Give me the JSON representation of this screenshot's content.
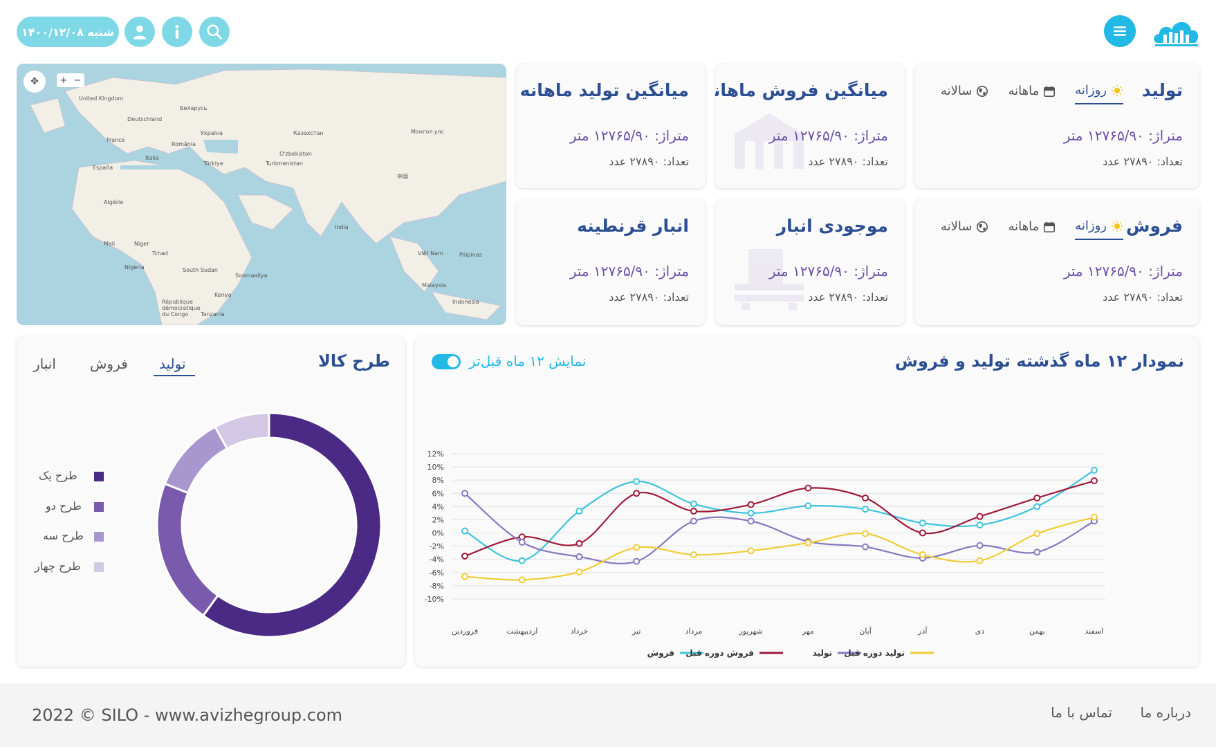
{
  "topbar": {
    "date_label": "شنبه ۱۴۰۰/۱۲/۰۸",
    "icons": [
      "user-icon",
      "info-icon",
      "search-icon",
      "menu-icon",
      "silo-cloud-logo"
    ],
    "accent": "#7fd8e6",
    "primary": "#22b9e4"
  },
  "map": {
    "labels": [
      "United Kingdom",
      "Deutschland",
      "France",
      "España",
      "Italia",
      "Беларусь",
      "Україна",
      "România",
      "Türkiye",
      "Казахстан",
      "O'zbekiston",
      "Turkmenistan",
      "Монгол улс",
      "中国",
      "Algérie",
      "Mali",
      "Niger",
      "Tchad",
      "Nigeria",
      "South Sudan",
      "Kenya",
      "Tanzania",
      "India",
      "Việt Nam",
      "Pilipinas",
      "Malaysia",
      "Indonesia",
      "République démocratique du Congo",
      "Soomaaliya"
    ]
  },
  "cards": {
    "production": {
      "title": "تولید",
      "tabs": [
        "روزانه",
        "ماهانه",
        "سالانه"
      ],
      "active_tab": "روزانه",
      "line1": "متراژ: ۱۲۷۶۵/۹۰ متر",
      "line2": "تعداد: ۲۷۸۹۰ عدد"
    },
    "avg_sales": {
      "title": "میانگین فروش ماهانه",
      "line1": "متراژ: ۱۲۷۶۵/۹۰ متر",
      "line2": "تعداد: ۲۷۸۹۰ عدد"
    },
    "avg_production": {
      "title": "میانگین تولید ماهانه",
      "line1": "متراژ: ۱۲۷۶۵/۹۰ متر",
      "line2": "تعداد: ۲۷۸۹۰ عدد"
    },
    "sales": {
      "title": "فروش",
      "tabs": [
        "روزانه",
        "ماهانه",
        "سالانه"
      ],
      "active_tab": "روزانه",
      "line1": "متراژ: ۱۲۷۶۵/۹۰ متر",
      "line2": "تعداد: ۲۷۸۹۰ عدد"
    },
    "inventory": {
      "title": "موجودی انبار",
      "line1": "متراژ: ۱۲۷۶۵/۹۰ متر",
      "line2": "تعداد: ۲۷۸۹۰ عدد"
    },
    "quarantine": {
      "title": "انبار قرنطینه",
      "line1": "متراژ: ۱۲۷۶۵/۹۰ متر",
      "line2": "تعداد: ۲۷۸۹۰ عدد"
    }
  },
  "design_panel": {
    "title": "طرح کالا",
    "tabs": [
      "تولید",
      "فروش",
      "انبار"
    ],
    "active_tab": "تولید"
  },
  "line_panel": {
    "title": "نمودار ۱۲ ماه گذشته تولید و فروش",
    "toggle_label": "نمایش ۱۲ ماه قبل‌تر",
    "toggle_on": true
  },
  "chart_data": [
    {
      "type": "pie",
      "title": "",
      "categories": [
        "طرح یک",
        "طرح دو",
        "طرح سه",
        "طرح چهار"
      ],
      "values": [
        60,
        21,
        11,
        8
      ],
      "colors": [
        "#4a2a85",
        "#7a5aad",
        "#a896cf",
        "#d3c9e6"
      ],
      "donut": true,
      "legend_position": "left"
    },
    {
      "type": "line",
      "title": "",
      "categories": [
        "فروردین",
        "اردیبهشت",
        "خرداد",
        "تیر",
        "مرداد",
        "شهریور",
        "مهر",
        "آبان",
        "آذر",
        "دی",
        "بهمن",
        "اسفند"
      ],
      "y_tick_labels": [
        "12%",
        "10%",
        "8%",
        "6%",
        "4%",
        "2%",
        "0%",
        "-2%",
        "-4%",
        "-6%",
        "-8%",
        "-10%"
      ],
      "ylim": [
        -10,
        12
      ],
      "y_unit": "%",
      "grid": true,
      "legend_position": "bottom",
      "series": [
        {
          "name": "فروش",
          "color": "#3cc4dc",
          "values": [
            0.3,
            -4.2,
            3.3,
            7.8,
            4.4,
            3.0,
            4.1,
            3.6,
            1.5,
            1.2,
            4.0,
            9.5
          ]
        },
        {
          "name": "فروش دوره قبل",
          "color": "#9e1a3a",
          "values": [
            -3.5,
            -0.6,
            -1.6,
            6.0,
            3.3,
            4.3,
            6.8,
            5.3,
            0.0,
            2.5,
            5.3,
            7.9
          ]
        },
        {
          "name": "تولید",
          "color": "#8877c0",
          "values": [
            6.0,
            -1.4,
            -3.6,
            -4.3,
            1.8,
            1.8,
            -1.3,
            -2.1,
            -3.8,
            -1.9,
            -2.9,
            1.8
          ]
        },
        {
          "name": "تولید دوره قبل",
          "color": "#f0cd34",
          "values": [
            -6.6,
            -7.1,
            -5.9,
            -2.2,
            -3.3,
            -2.7,
            -1.5,
            -0.1,
            -3.3,
            -4.2,
            -0.1,
            2.4
          ]
        }
      ]
    }
  ],
  "footer": {
    "copyright": "2022 © SILO - www.avizhegroup.com",
    "links": [
      "درباره ما",
      "تماس با ما"
    ]
  }
}
